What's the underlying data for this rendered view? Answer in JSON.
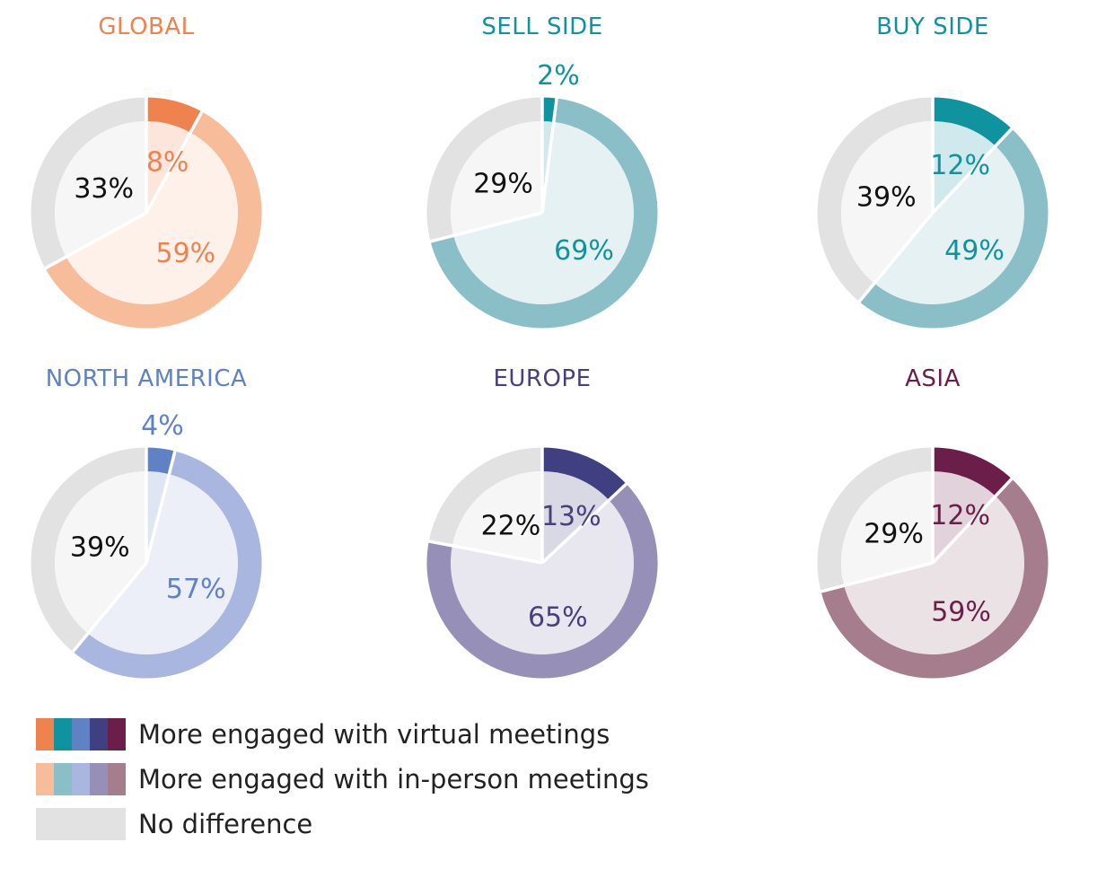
{
  "chart_data": [
    {
      "type": "pie",
      "title": "GLOBAL",
      "color_dark": "#ee8350",
      "color_light": "#f7bd9b",
      "color_text": "#ee8350",
      "slices": [
        {
          "label": "More engaged with virtual meetings",
          "value": 8,
          "label_text": "8%"
        },
        {
          "label": "More engaged with in-person meetings",
          "value": 59,
          "label_text": "59%"
        },
        {
          "label": "No difference",
          "value": 33,
          "label_text": "33%"
        }
      ]
    },
    {
      "type": "pie",
      "title": "SELL SIDE",
      "color_dark": "#0f939e",
      "color_light": "#8bbfc8",
      "color_text": "#0f939e",
      "slices": [
        {
          "label": "More engaged with virtual meetings",
          "value": 2,
          "label_text": "2%"
        },
        {
          "label": "More engaged with in-person meetings",
          "value": 69,
          "label_text": "69%"
        },
        {
          "label": "No difference",
          "value": 29,
          "label_text": "29%"
        }
      ]
    },
    {
      "type": "pie",
      "title": "BUY SIDE",
      "color_dark": "#0f939e",
      "color_light": "#8bbfc8",
      "color_text": "#0f939e",
      "slices": [
        {
          "label": "More engaged with virtual meetings",
          "value": 12,
          "label_text": "12%"
        },
        {
          "label": "More engaged with in-person meetings",
          "value": 49,
          "label_text": "49%"
        },
        {
          "label": "No difference",
          "value": 39,
          "label_text": "39%"
        }
      ]
    },
    {
      "type": "pie",
      "title": "NORTH AMERICA",
      "color_dark": "#5f82c4",
      "color_light": "#a9b7e0",
      "color_text": "#5f82c4",
      "slices": [
        {
          "label": "More engaged with virtual meetings",
          "value": 4,
          "label_text": "4%"
        },
        {
          "label": "More engaged with in-person meetings",
          "value": 57,
          "label_text": "57%"
        },
        {
          "label": "No difference",
          "value": 39,
          "label_text": "39%"
        }
      ]
    },
    {
      "type": "pie",
      "title": "EUROPE",
      "color_dark": "#3f3f82",
      "color_light": "#9690b8",
      "color_text": "#4a3f7a",
      "slices": [
        {
          "label": "More engaged with virtual meetings",
          "value": 13,
          "label_text": "13%"
        },
        {
          "label": "More engaged with in-person meetings",
          "value": 65,
          "label_text": "65%"
        },
        {
          "label": "No difference",
          "value": 22,
          "label_text": "22%"
        }
      ]
    },
    {
      "type": "pie",
      "title": "ASIA",
      "color_dark": "#6b1e4a",
      "color_light": "#a67d8c",
      "color_text": "#6b1e4a",
      "slices": [
        {
          "label": "More engaged with virtual meetings",
          "value": 12,
          "label_text": "12%"
        },
        {
          "label": "More engaged with in-person meetings",
          "value": 59,
          "label_text": "59%"
        },
        {
          "label": "No difference",
          "value": 29,
          "label_text": "29%"
        }
      ]
    }
  ],
  "grey_ring_color": "#e2e2e2",
  "grey_fill_color": "#f6f6f6",
  "legend": {
    "items": [
      {
        "label": "More engaged with virtual meetings",
        "colors": [
          "#ee8350",
          "#0f939e",
          "#5f82c4",
          "#3f3f82",
          "#6b1e4a"
        ]
      },
      {
        "label": "More engaged with in-person meetings",
        "colors": [
          "#f7bd9b",
          "#8bbfc8",
          "#a9b7e0",
          "#9690b8",
          "#a67d8c"
        ]
      },
      {
        "label": "No difference",
        "colors": [
          "#e2e2e2"
        ]
      }
    ]
  }
}
